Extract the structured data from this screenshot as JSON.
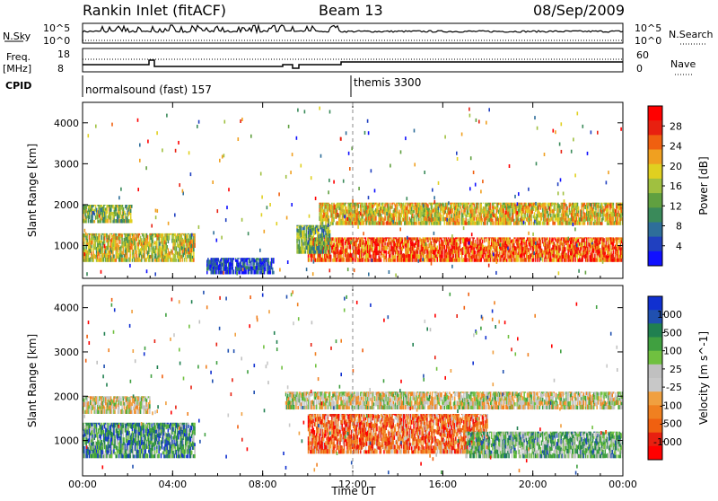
{
  "header": {
    "station": "Rankin Inlet (fitACF)",
    "beam": "Beam 13",
    "date": "08/Sep/2009"
  },
  "top_panels": {
    "nsky_label": "N.Sky",
    "nsky_ticks": [
      "10^5",
      "10^0"
    ],
    "nsearch_label": "N.Search",
    "nsearch_ticks": [
      "10^5",
      "10^0"
    ],
    "freq_label_1": "Freq.",
    "freq_label_2": "[MHz]",
    "freq_ticks": [
      "18",
      "8"
    ],
    "nave_label": "Nave",
    "nave_ticks": [
      "60",
      "0"
    ],
    "cpid_label": "CPID",
    "cpid_modes": [
      {
        "name": "normalsound (fast) 157",
        "start_hour": 0
      },
      {
        "name": "themis 3300",
        "start_hour": 12
      }
    ]
  },
  "colors": {
    "power": [
      "#1010ff",
      "#2040c0",
      "#2e6e9a",
      "#3a8a5a",
      "#60a040",
      "#a0c040",
      "#e0d020",
      "#f0a020",
      "#f06010",
      "#e82010",
      "#ff0000"
    ],
    "velocity": [
      "#ff0000",
      "#e82010",
      "#f06010",
      "#f08020",
      "#f0a040",
      "#c8c8c8",
      "#c0c0c0",
      "#70c040",
      "#40a040",
      "#208050",
      "#2050b0",
      "#1030d0"
    ]
  },
  "chart_data": [
    {
      "type": "heatmap",
      "title": "",
      "xlabel": "Time UT",
      "ylabel": "Slant Range [km]",
      "xlim": [
        0,
        24
      ],
      "ylim": [
        200,
        4500
      ],
      "x_tick_labels": [
        "00:00",
        "04:00",
        "08:00",
        "12:00",
        "16:00",
        "20:00",
        "00:00"
      ],
      "y_ticks": [
        1000,
        2000,
        3000,
        4000
      ],
      "y_tick_labels": [
        "1000",
        "2000",
        "3000",
        "4000"
      ],
      "colorbar_label": "Power [dB]",
      "colorbar_ticks": [
        "28",
        "24",
        "20",
        "16",
        "12",
        "8",
        "4"
      ],
      "bands": [
        {
          "t0": 0.0,
          "t1": 5.0,
          "r0": 600,
          "r1": 1300,
          "level": 0.55
        },
        {
          "t0": 0.0,
          "t1": 2.2,
          "r0": 1550,
          "r1": 2000,
          "level": 0.45
        },
        {
          "t0": 5.5,
          "t1": 8.5,
          "r0": 300,
          "r1": 700,
          "level": 0.15
        },
        {
          "t0": 10.0,
          "t1": 24.0,
          "r0": 600,
          "r1": 1200,
          "level": 0.8
        },
        {
          "t0": 10.5,
          "t1": 24.0,
          "r0": 1500,
          "r1": 2050,
          "level": 0.6
        },
        {
          "t0": 9.5,
          "t1": 11.0,
          "r0": 800,
          "r1": 1500,
          "level": 0.4
        }
      ]
    },
    {
      "type": "heatmap",
      "title": "",
      "xlabel": "Time UT",
      "ylabel": "Slant Range [km]",
      "xlim": [
        0,
        24
      ],
      "ylim": [
        200,
        4500
      ],
      "x_tick_labels": [
        "00:00",
        "04:00",
        "08:00",
        "12:00",
        "16:00",
        "20:00",
        "00:00"
      ],
      "y_ticks": [
        1000,
        2000,
        3000,
        4000
      ],
      "y_tick_labels": [
        "1000",
        "2000",
        "3000",
        "4000"
      ],
      "colorbar_label": "Velocity [m s^-1]",
      "colorbar_ticks": [
        "1000",
        "500",
        "100",
        "25",
        "-25",
        "-100",
        "-500",
        "-1000"
      ],
      "bands": [
        {
          "t0": 0.0,
          "t1": 5.0,
          "r0": 600,
          "r1": 1400,
          "level": 0.75
        },
        {
          "t0": 0.0,
          "t1": 3.0,
          "r0": 1600,
          "r1": 2000,
          "level": 0.5
        },
        {
          "t0": 9.0,
          "t1": 24.0,
          "r0": 1700,
          "r1": 2100,
          "level": 0.5
        },
        {
          "t0": 10.0,
          "t1": 18.0,
          "r0": 700,
          "r1": 1600,
          "level": 0.25
        },
        {
          "t0": 17.0,
          "t1": 24.0,
          "r0": 600,
          "r1": 1200,
          "level": 0.65
        }
      ]
    }
  ]
}
